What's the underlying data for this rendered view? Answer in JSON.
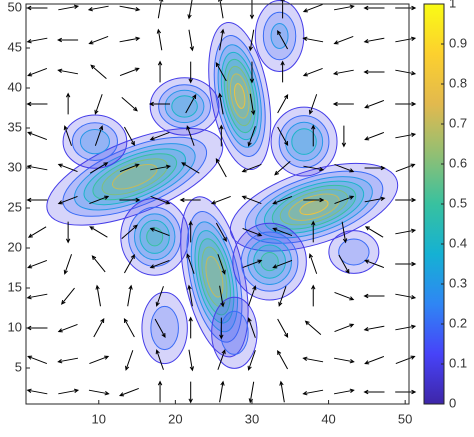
{
  "chart_data": {
    "type": "quiver",
    "xlim": [
      0.5,
      50.5
    ],
    "ylim": [
      0.5,
      50.5
    ],
    "xticks": [
      10,
      20,
      30,
      40,
      50
    ],
    "yticks": [
      5,
      10,
      15,
      20,
      25,
      30,
      35,
      40,
      45,
      50
    ],
    "clim": [
      0,
      1
    ],
    "cticks": [
      0,
      0.1,
      0.2,
      0.3,
      0.4,
      0.5,
      0.6,
      0.7,
      0.8,
      0.9,
      1
    ],
    "colormap": [
      "#3e26a8",
      "#4743f8",
      "#2f86f4",
      "#15b1d3",
      "#38c19f",
      "#92bf73",
      "#e2b94e",
      "#fcd02e",
      "#f9fb15"
    ],
    "contour_levels": [
      0.1,
      0.2,
      0.3,
      0.4,
      0.5,
      0.6,
      0.7,
      0.8
    ],
    "blobs": [
      {
        "x": 28.4,
        "y": 39,
        "rx": 1.8,
        "ry": 4.5,
        "angle": -10,
        "peak": 0.85
      },
      {
        "x": 21.2,
        "y": 37.7,
        "rx": 2.5,
        "ry": 2,
        "angle": 0,
        "peak": 0.5
      },
      {
        "x": 14.7,
        "y": 28.9,
        "rx": 6,
        "ry": 2.2,
        "angle": -22,
        "peak": 0.8
      },
      {
        "x": 9.5,
        "y": 33.3,
        "rx": 2.5,
        "ry": 2,
        "angle": 0,
        "peak": 0.4
      },
      {
        "x": 36.8,
        "y": 33.3,
        "rx": 2.4,
        "ry": 2.4,
        "angle": 0,
        "peak": 0.5
      },
      {
        "x": 38.1,
        "y": 25.1,
        "rx": 5.5,
        "ry": 2.2,
        "angle": -18,
        "peak": 0.85
      },
      {
        "x": 17.3,
        "y": 21.4,
        "rx": 2.4,
        "ry": 2.6,
        "angle": 0,
        "peak": 0.55
      },
      {
        "x": 25.1,
        "y": 16.4,
        "rx": 1.9,
        "ry": 5,
        "angle": -12,
        "peak": 0.8
      },
      {
        "x": 32.3,
        "y": 18.3,
        "rx": 2.6,
        "ry": 2.6,
        "angle": 0,
        "peak": 0.55
      },
      {
        "x": 43.3,
        "y": 19.5,
        "rx": 2.2,
        "ry": 1.8,
        "angle": 0,
        "peak": 0.3
      },
      {
        "x": 33.6,
        "y": 46.5,
        "rx": 2,
        "ry": 2.8,
        "angle": 0,
        "peak": 0.35
      },
      {
        "x": 18.6,
        "y": 10,
        "rx": 2,
        "ry": 3,
        "angle": 0,
        "peak": 0.3
      },
      {
        "x": 27.7,
        "y": 9.4,
        "rx": 2,
        "ry": 3,
        "angle": 0,
        "peak": 0.3
      }
    ],
    "grid_x": [
      2,
      6,
      10,
      14,
      18,
      22,
      26,
      30,
      34,
      38,
      42,
      46,
      50
    ],
    "grid_y": [
      2,
      6,
      10,
      14,
      18,
      22,
      26,
      30,
      34,
      38,
      42,
      46,
      50
    ],
    "arrow_angles": [
      [
        170,
        10,
        350,
        200,
        90,
        270,
        80,
        260,
        100,
        190,
        10,
        180,
        0
      ],
      [
        160,
        190,
        20,
        250,
        110,
        280,
        70,
        250,
        120,
        170,
        350,
        200,
        20
      ],
      [
        180,
        200,
        60,
        120,
        300,
        90,
        270,
        110,
        300,
        140,
        20,
        190,
        10
      ],
      [
        190,
        230,
        100,
        80,
        250,
        100,
        280,
        70,
        250,
        90,
        340,
        180,
        350
      ],
      [
        200,
        250,
        130,
        60,
        200,
        110,
        290,
        20,
        200,
        110,
        300,
        160,
        0
      ],
      [
        210,
        270,
        150,
        40,
        160,
        90,
        300,
        340,
        160,
        90,
        280,
        150,
        10
      ],
      [
        180,
        200,
        20,
        0,
        340,
        180,
        200,
        160,
        200,
        0,
        20,
        10,
        0
      ],
      [
        170,
        160,
        30,
        20,
        10,
        150,
        120,
        200,
        220,
        350,
        340,
        0,
        20
      ],
      [
        160,
        110,
        70,
        300,
        200,
        110,
        90,
        250,
        300,
        90,
        270,
        200,
        10
      ],
      [
        180,
        90,
        250,
        320,
        180,
        60,
        100,
        280,
        60,
        250,
        180,
        200,
        0
      ],
      [
        200,
        170,
        140,
        20,
        90,
        270,
        120,
        270,
        90,
        200,
        190,
        180,
        350
      ],
      [
        190,
        180,
        200,
        10,
        100,
        280,
        80,
        260,
        120,
        170,
        200,
        190,
        10
      ],
      [
        180,
        10,
        190,
        350,
        80,
        260,
        100,
        270,
        90,
        200,
        10,
        180,
        0
      ]
    ]
  }
}
